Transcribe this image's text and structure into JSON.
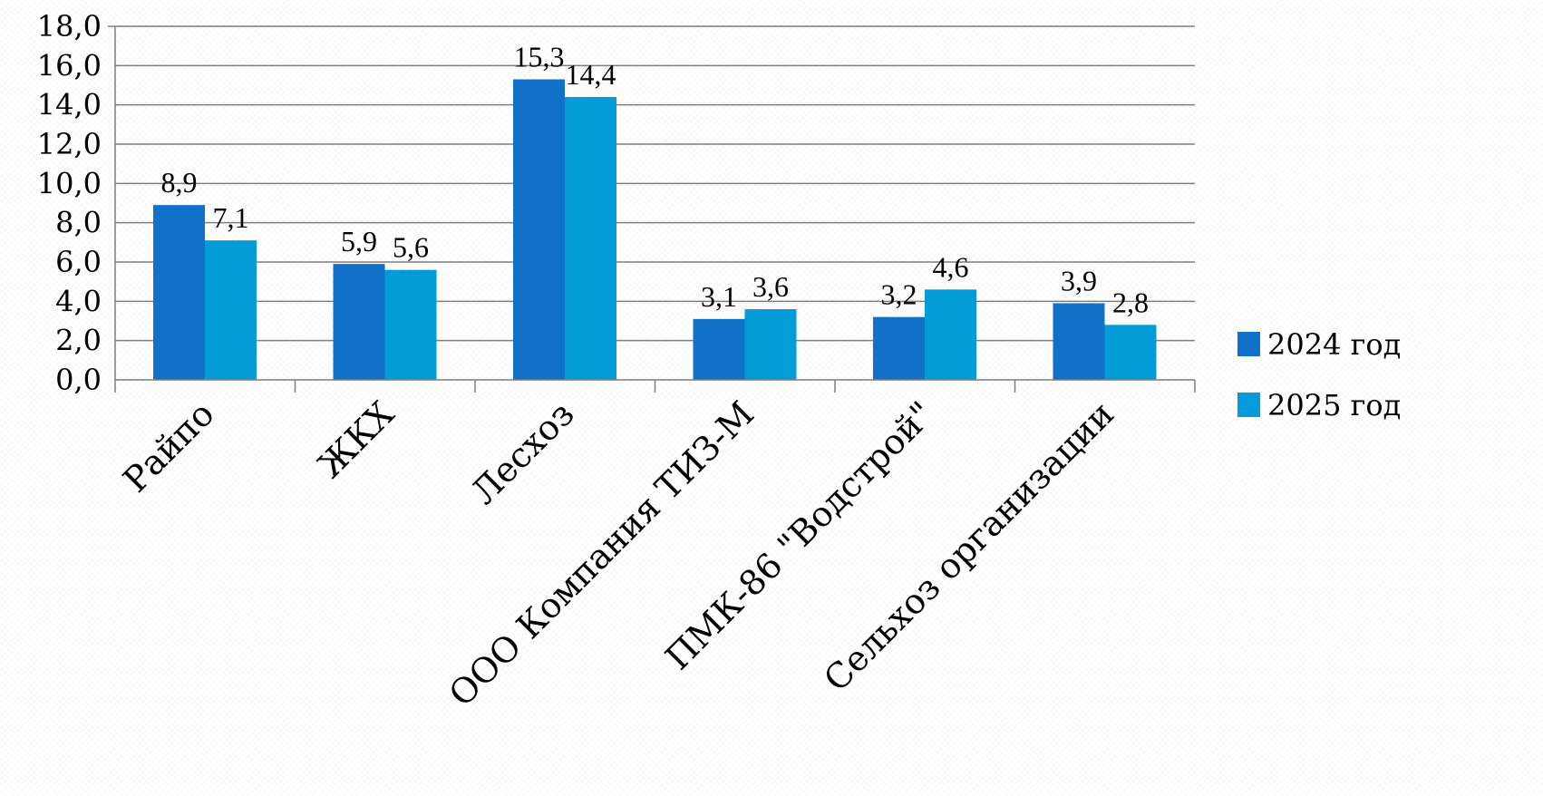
{
  "chart_data": {
    "type": "bar",
    "categories": [
      "Райпо",
      "ЖКХ",
      "Лесхоз",
      "ООО Компания ТИЗ-М",
      "ПМК-86 \"Водстрой\"",
      "Сельхоз организации"
    ],
    "series": [
      {
        "name": "2024 год",
        "color": "#1170C8",
        "values": [
          8.9,
          5.9,
          15.3,
          3.1,
          3.2,
          3.9
        ]
      },
      {
        "name": "2025 год",
        "color": "#039CD8",
        "values": [
          7.1,
          5.6,
          14.4,
          3.6,
          4.6,
          2.8
        ]
      }
    ],
    "ylim": [
      0,
      18
    ],
    "yticks": [
      "0,0",
      "2,0",
      "4,0",
      "6,0",
      "8,0",
      "10,0",
      "12,0",
      "14,0",
      "16,0",
      "18,0"
    ],
    "data_labels": [
      [
        "8,9",
        "5,9",
        "15,3",
        "3,1",
        "3,2",
        "3,9"
      ],
      [
        "7,1",
        "5,6",
        "14,4",
        "3,6",
        "4,6",
        "2,8"
      ]
    ],
    "grid": true,
    "legend_position": "right",
    "title": "",
    "xlabel": "",
    "ylabel": ""
  }
}
